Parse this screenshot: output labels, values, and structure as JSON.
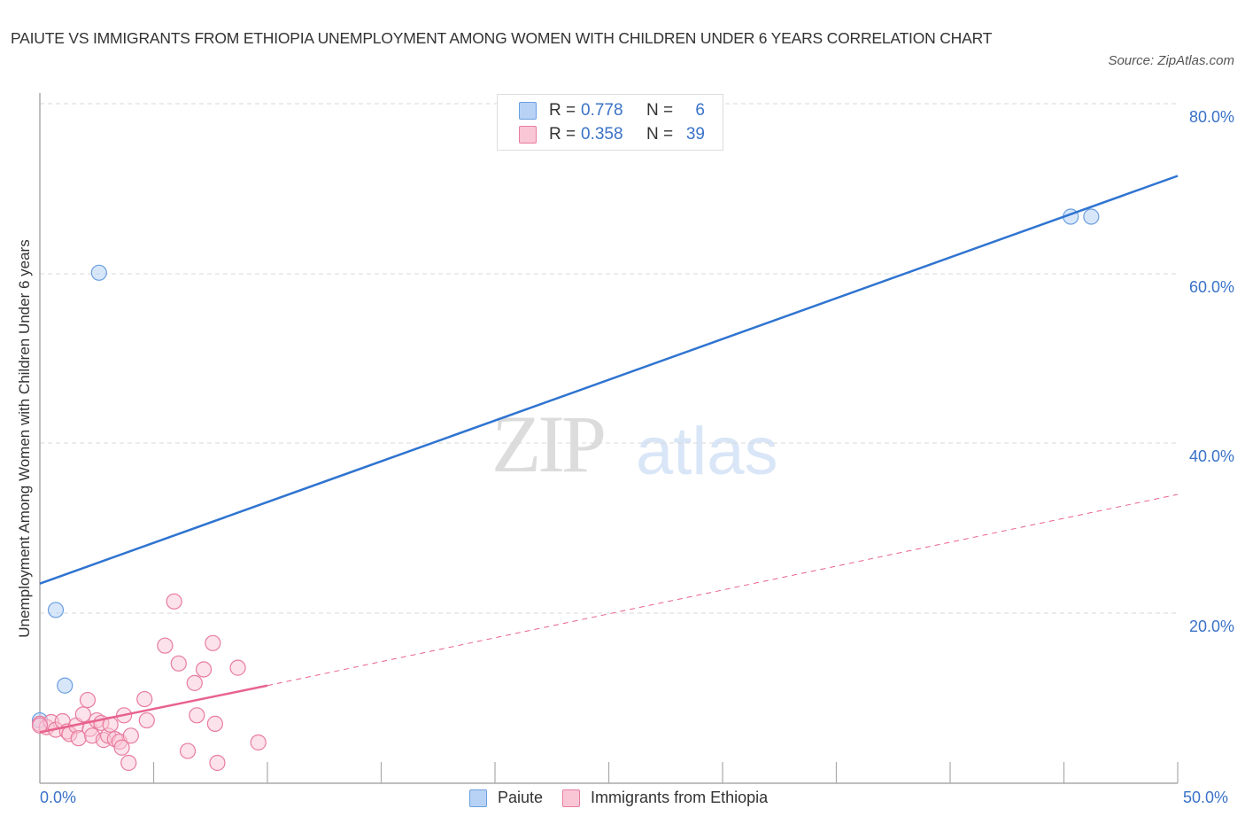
{
  "header": {
    "title": "PAIUTE VS IMMIGRANTS FROM ETHIOPIA UNEMPLOYMENT AMONG WOMEN WITH CHILDREN UNDER 6 YEARS CORRELATION CHART",
    "source": "Source: ZipAtlas.com"
  },
  "watermark": {
    "zip": "ZIP",
    "atlas": "atlas"
  },
  "axes": {
    "ylabel": "Unemployment Among Women with Children Under 6 years",
    "yticks": [
      "80.0%",
      "60.0%",
      "40.0%",
      "20.0%"
    ],
    "xticks": [
      "0.0%",
      "50.0%"
    ]
  },
  "legend": {
    "series": [
      {
        "name": "Paiute",
        "r_label": "R =",
        "r": "0.778",
        "n_label": "N =",
        "n": "6",
        "color": "#6a9fe0",
        "fill": "#b8d2f5"
      },
      {
        "name": "Immigrants from Ethiopia",
        "r_label": "R =",
        "r": "0.358",
        "n_label": "N =",
        "n": "39",
        "color": "#e87ca0",
        "fill": "#f9c6d6"
      }
    ]
  },
  "colors": {
    "paiute_line": "#2f74d0",
    "ethiopia_line": "#e8628e",
    "tick_label": "#3a72c8",
    "grid": "#d8d8d8"
  },
  "chart_data": {
    "type": "scatter",
    "title": "PAIUTE VS IMMIGRANTS FROM ETHIOPIA UNEMPLOYMENT AMONG WOMEN WITH CHILDREN UNDER 6 YEARS CORRELATION CHART",
    "xlabel": "",
    "ylabel": "Unemployment Among Women with Children Under 6 years",
    "xlim": [
      0,
      50
    ],
    "ylim": [
      0,
      80
    ],
    "x_tick_labels": [
      "0.0%",
      "50.0%"
    ],
    "y_tick_labels": [
      "20.0%",
      "40.0%",
      "60.0%",
      "80.0%"
    ],
    "grid": true,
    "legend_position": "top-center and bottom",
    "series": [
      {
        "name": "Paiute",
        "R": 0.778,
        "N": 6,
        "points": [
          [
            0.0,
            7.4
          ],
          [
            0.7,
            20.4
          ],
          [
            1.1,
            11.5
          ],
          [
            2.6,
            60.1
          ],
          [
            45.3,
            66.7
          ],
          [
            46.2,
            66.7
          ]
        ],
        "trendline": {
          "x": [
            0,
            50
          ],
          "y": [
            23.5,
            71.5
          ],
          "style": "solid"
        }
      },
      {
        "name": "Immigrants from Ethiopia",
        "R": 0.358,
        "N": 39,
        "points": [
          [
            0.0,
            7.0
          ],
          [
            0.3,
            6.6
          ],
          [
            0.5,
            7.2
          ],
          [
            0.7,
            6.3
          ],
          [
            1.0,
            7.3
          ],
          [
            1.2,
            6.1
          ],
          [
            1.3,
            5.8
          ],
          [
            1.6,
            6.8
          ],
          [
            1.7,
            5.3
          ],
          [
            1.9,
            8.1
          ],
          [
            2.1,
            9.8
          ],
          [
            2.2,
            6.4
          ],
          [
            2.3,
            5.6
          ],
          [
            2.5,
            7.4
          ],
          [
            2.7,
            7.1
          ],
          [
            2.8,
            5.1
          ],
          [
            3.0,
            5.6
          ],
          [
            3.1,
            6.9
          ],
          [
            3.3,
            5.2
          ],
          [
            3.5,
            4.9
          ],
          [
            3.6,
            4.2
          ],
          [
            3.7,
            8.0
          ],
          [
            3.9,
            2.4
          ],
          [
            4.0,
            5.6
          ],
          [
            4.6,
            9.9
          ],
          [
            4.7,
            7.4
          ],
          [
            5.5,
            16.2
          ],
          [
            5.9,
            21.4
          ],
          [
            6.1,
            14.1
          ],
          [
            6.5,
            3.8
          ],
          [
            6.8,
            11.8
          ],
          [
            6.9,
            8.0
          ],
          [
            7.2,
            13.4
          ],
          [
            7.6,
            16.5
          ],
          [
            7.7,
            7.0
          ],
          [
            7.8,
            2.4
          ],
          [
            8.7,
            13.6
          ],
          [
            9.6,
            4.8
          ],
          [
            0.0,
            6.8
          ]
        ],
        "trendline": {
          "x": [
            0,
            10,
            50
          ],
          "y": [
            6.0,
            11.5,
            34.0
          ],
          "style": "solid to 10%, dashed beyond"
        }
      }
    ]
  }
}
